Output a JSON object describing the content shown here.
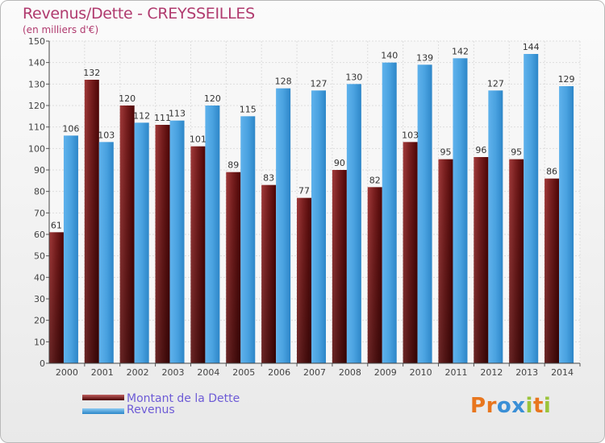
{
  "header": {
    "title": "Revenus/Dette - CREYSSEILLES",
    "subtitle": "(en milliers d'€)"
  },
  "legend": {
    "debt_label": "Montant de la Dette",
    "revenue_label": "Revenus"
  },
  "logo": {
    "text": "Proxiti",
    "letters": [
      "P",
      "r",
      "o",
      "x",
      "i",
      "t",
      "i"
    ],
    "colors": [
      "#e8761e",
      "#e8761e",
      "#3a8fd6",
      "#3a8fd6",
      "#9bc43a",
      "#e8761e",
      "#9bc43a"
    ]
  },
  "chart_data": {
    "type": "bar",
    "categories": [
      "2000",
      "2001",
      "2002",
      "2003",
      "2004",
      "2005",
      "2006",
      "2007",
      "2008",
      "2009",
      "2010",
      "2011",
      "2012",
      "2013",
      "2014"
    ],
    "series": [
      {
        "name": "Montant de la Dette",
        "color": "#8b2a2a",
        "values": [
          61,
          132,
          120,
          111,
          101,
          89,
          83,
          77,
          90,
          82,
          103,
          95,
          96,
          95,
          86
        ]
      },
      {
        "name": "Revenus",
        "color": "#4ea6e4",
        "values": [
          106,
          103,
          112,
          113,
          120,
          115,
          128,
          127,
          130,
          140,
          139,
          142,
          127,
          144,
          129
        ]
      }
    ],
    "title": "Revenus/Dette - CREYSSEILLES",
    "ylabel": "(en milliers d'€)",
    "ylim": [
      0,
      150
    ],
    "ytick_step": 10,
    "grid": true,
    "legend_position": "bottom-left"
  }
}
